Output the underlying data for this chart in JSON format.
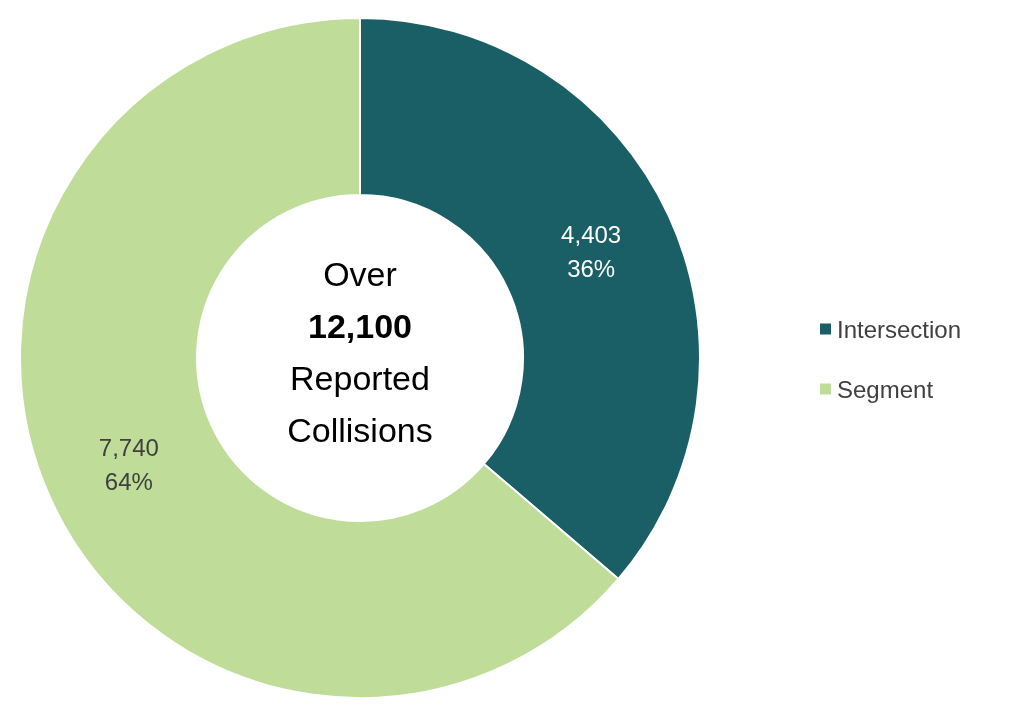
{
  "chart_data": {
    "type": "donut",
    "categories": [
      "Intersection",
      "Segment"
    ],
    "values": [
      4403,
      7740
    ],
    "colors": [
      "#1a5f66",
      "#bfdd98"
    ],
    "value_labels": [
      "4,403\n36%",
      "7,740\n64%"
    ],
    "annotations": [
      "Over",
      "12,100",
      "Reported",
      "Collisions"
    ],
    "legend": "right"
  }
}
